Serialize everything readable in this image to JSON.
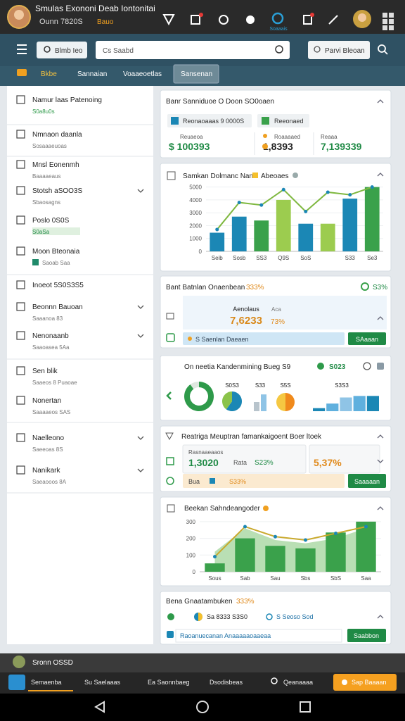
{
  "status_bar": {
    "title": "Smulas Exononi Deab Iontonitai",
    "subtitle": "Ounn 7820S",
    "badge": "Bauo",
    "icon_label": "Soaaais"
  },
  "header": {
    "search_chip": "Blmb Ieo",
    "search_placeholder": "Cs Saabd",
    "filter": "Parvi Bleoan"
  },
  "tabs": [
    "Bkbe",
    "Sannaian",
    "Voaaeoetlas",
    "Sansenan"
  ],
  "sidebar": [
    {
      "title": "Namur laas Patenoing",
      "sub": "S0a8u0s"
    },
    {
      "title": "Nmnaon daanla",
      "sub": "Sosaaaeuoas"
    },
    {
      "title": "Mnsl Eonenmh",
      "sub": "Baaaaeaus"
    },
    {
      "title": "Stotsh aSOO3S",
      "sub": "Sbaosagns"
    },
    {
      "title": "Poslo 0S0S",
      "sub": "S0aSa"
    },
    {
      "title": "Moon Bteonaia",
      "sub": "Saoab Saa"
    },
    {
      "title": "Inoeot 5S0S3S5"
    },
    {
      "title": "Beonnn Bauoan",
      "sub": "Saaanoa 83"
    },
    {
      "title": "Nenonaanb",
      "sub": "Saaoasea 5Aa"
    },
    {
      "title": "Sen blik",
      "sub": "Saaeos 8 Puaoae"
    },
    {
      "title": "Nonertan",
      "sub": "Saaaaeos SAS"
    },
    {
      "title": "Naelleono",
      "sub": "Saeeoas 8S"
    },
    {
      "title": "Nanikark",
      "sub": "Saeaooos 8A"
    }
  ],
  "cards": {
    "summary": {
      "title": "Banr Sanniduoe O Doon SO0oaen",
      "chip1": "Reonaoaaas 9 0000S",
      "chip2": "Reeonaed",
      "stats": [
        {
          "label": "Reuaeoa",
          "value": "$ 100393"
        },
        {
          "label": "Roaaaaed",
          "value": "1,8393"
        },
        {
          "label": "Reaaa",
          "value": "7,139339"
        }
      ]
    },
    "balance": {
      "title": "Bant Batnlan Onaenbean",
      "title_pct": "333%",
      "right": "S3%",
      "label": "Aenolaus",
      "value": "7,6233",
      "sub_label": "Aca",
      "sub_value": "73%",
      "bar_text": "S Saenlan Daeaen",
      "button": "SAaaan"
    },
    "mini": {
      "title": "On neetia Kandenmining Bueg S9",
      "value": "S023"
    },
    "metrics": {
      "title": "Reatriga Meuptran famankaigoent Boer ltoek",
      "box1_label": "Rasnaaeaaos",
      "box1_value": "1,3020",
      "box1_label2": "Rata",
      "box1_value2": "S23%",
      "box2_value": "5,37%",
      "bar_text": "Bua",
      "bar_value": "S33%",
      "button": "Saaaaan"
    },
    "footer_card": {
      "title": "Bena Gnaatambuken",
      "title_pct": "333%",
      "item": "Sa 8333 S3S0",
      "item2": "S Seoso Sod",
      "link": "Raoanuecanan Anaaaaaoaaeaa",
      "button": "Saabbon"
    }
  },
  "chart_data": [
    {
      "type": "combo",
      "title": "Samkan Dolmanc Nan",
      "categories": [
        "Seib",
        "Sosb",
        "SS3",
        "Q9S",
        "SoS",
        null,
        "S33",
        "Se3"
      ],
      "ylim": [
        0,
        5200
      ],
      "yticks": [
        0,
        1000,
        2000,
        3000,
        4000,
        5000
      ],
      "grid": true,
      "series": [
        {
          "name": "Abeoaes",
          "type": "bar",
          "colors": [
            "#1b87b5",
            "#1b87b5",
            "#3aa14b",
            "#9ccc4f",
            "#1b87b5",
            "#9ccc4f",
            "#1b87b5",
            "#3aa14b"
          ],
          "values": [
            1450,
            2700,
            2400,
            4000,
            2150,
            2150,
            4100,
            5000
          ]
        },
        {
          "type": "line",
          "color": "#7fb840",
          "values": [
            1700,
            3800,
            3600,
            4800,
            3100,
            4600,
            4400,
            5000
          ]
        }
      ]
    },
    {
      "type": "combo",
      "title": "Beekan Sahndeangoder",
      "categories": [
        "Sous",
        "Sab",
        "Sau",
        "Sbs",
        "SbS",
        "Saa"
      ],
      "ylim": [
        0,
        350
      ],
      "yticks": [
        0,
        100,
        200,
        300
      ],
      "grid": true,
      "series": [
        {
          "type": "area",
          "color": "#b9dfb4",
          "values": [
            120,
            260,
            190,
            170,
            200,
            260
          ]
        },
        {
          "type": "bar",
          "color": "#3aa14b",
          "values": [
            50,
            200,
            155,
            140,
            235,
            300
          ]
        },
        {
          "type": "line",
          "color": "#c9a92c",
          "values": [
            90,
            270,
            210,
            190,
            230,
            270
          ]
        }
      ]
    },
    {
      "type": "donut",
      "colors": [
        "#2e9a4a",
        "#dfe8e0"
      ],
      "values": [
        90,
        10
      ]
    },
    {
      "type": "pie",
      "title": "S0S3",
      "colors": [
        "#1b87b5",
        "#8bc34a"
      ],
      "values": [
        60,
        40
      ]
    },
    {
      "type": "bar",
      "title": "S33",
      "colors": [
        "#b8c4cc",
        "#8fc4e6"
      ],
      "ylim": [
        0,
        60
      ],
      "values": [
        30,
        55
      ]
    },
    {
      "type": "pie",
      "title": "S5S",
      "colors": [
        "#f08a1c",
        "#f5c842"
      ],
      "values": [
        50,
        50
      ]
    },
    {
      "type": "bar",
      "title": "S3S3",
      "colors": [
        "#1b87b5",
        "#5fb0de",
        "#8fc4e6",
        "#5fb0de",
        "#1b87b5"
      ],
      "ylim": [
        0,
        60
      ],
      "values": [
        10,
        25,
        45,
        50,
        50
      ]
    }
  ],
  "footer": {
    "user": "Sronn OSSD",
    "nav": [
      "Semaenba",
      "Su Saelaaas",
      "Ea Saonnbaeg",
      "Dsodisbeas",
      "Qeanaaaa"
    ],
    "action": "Sap Baaaan"
  }
}
